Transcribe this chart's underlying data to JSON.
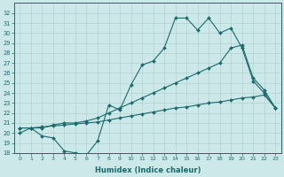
{
  "xlabel": "Humidex (Indice chaleur)",
  "background_color": "#cce8e8",
  "grid_color": "#aacccc",
  "line_color": "#1a6b6b",
  "xlim": [
    -0.5,
    23.5
  ],
  "ylim": [
    18,
    33
  ],
  "yticks": [
    18,
    19,
    20,
    21,
    22,
    23,
    24,
    25,
    26,
    27,
    28,
    29,
    30,
    31,
    32
  ],
  "xticks": [
    0,
    1,
    2,
    3,
    4,
    5,
    6,
    7,
    8,
    9,
    10,
    11,
    12,
    13,
    14,
    15,
    16,
    17,
    18,
    19,
    20,
    21,
    22,
    23
  ],
  "line1_x": [
    0,
    1,
    2,
    3,
    4,
    5,
    6,
    7,
    8,
    9,
    10,
    11,
    12,
    13,
    14,
    15,
    16,
    17,
    18,
    19,
    20,
    21,
    22,
    23
  ],
  "line1_y": [
    20.0,
    20.5,
    19.7,
    19.5,
    18.2,
    18.0,
    17.8,
    19.2,
    22.8,
    22.3,
    24.8,
    26.8,
    27.2,
    28.5,
    31.5,
    31.5,
    30.3,
    31.5,
    30.0,
    30.5,
    28.5,
    25.2,
    24.0,
    22.5
  ],
  "line2_x": [
    0,
    1,
    2,
    3,
    4,
    5,
    6,
    7,
    8,
    9,
    10,
    11,
    12,
    13,
    14,
    15,
    16,
    17,
    18,
    19,
    20,
    21,
    22,
    23
  ],
  "line2_y": [
    20.5,
    20.5,
    20.5,
    20.8,
    21.0,
    21.0,
    21.2,
    21.5,
    22.0,
    22.5,
    23.0,
    23.5,
    24.0,
    24.5,
    25.0,
    25.5,
    26.0,
    26.5,
    27.0,
    28.5,
    28.8,
    25.5,
    24.3,
    22.5
  ],
  "line3_x": [
    0,
    1,
    2,
    3,
    4,
    5,
    6,
    7,
    8,
    9,
    10,
    11,
    12,
    13,
    14,
    15,
    16,
    17,
    18,
    19,
    20,
    21,
    22,
    23
  ],
  "line3_y": [
    20.5,
    20.5,
    20.6,
    20.7,
    20.8,
    20.9,
    21.0,
    21.1,
    21.3,
    21.5,
    21.7,
    21.9,
    22.1,
    22.3,
    22.5,
    22.6,
    22.8,
    23.0,
    23.1,
    23.3,
    23.5,
    23.6,
    23.8,
    22.5
  ]
}
